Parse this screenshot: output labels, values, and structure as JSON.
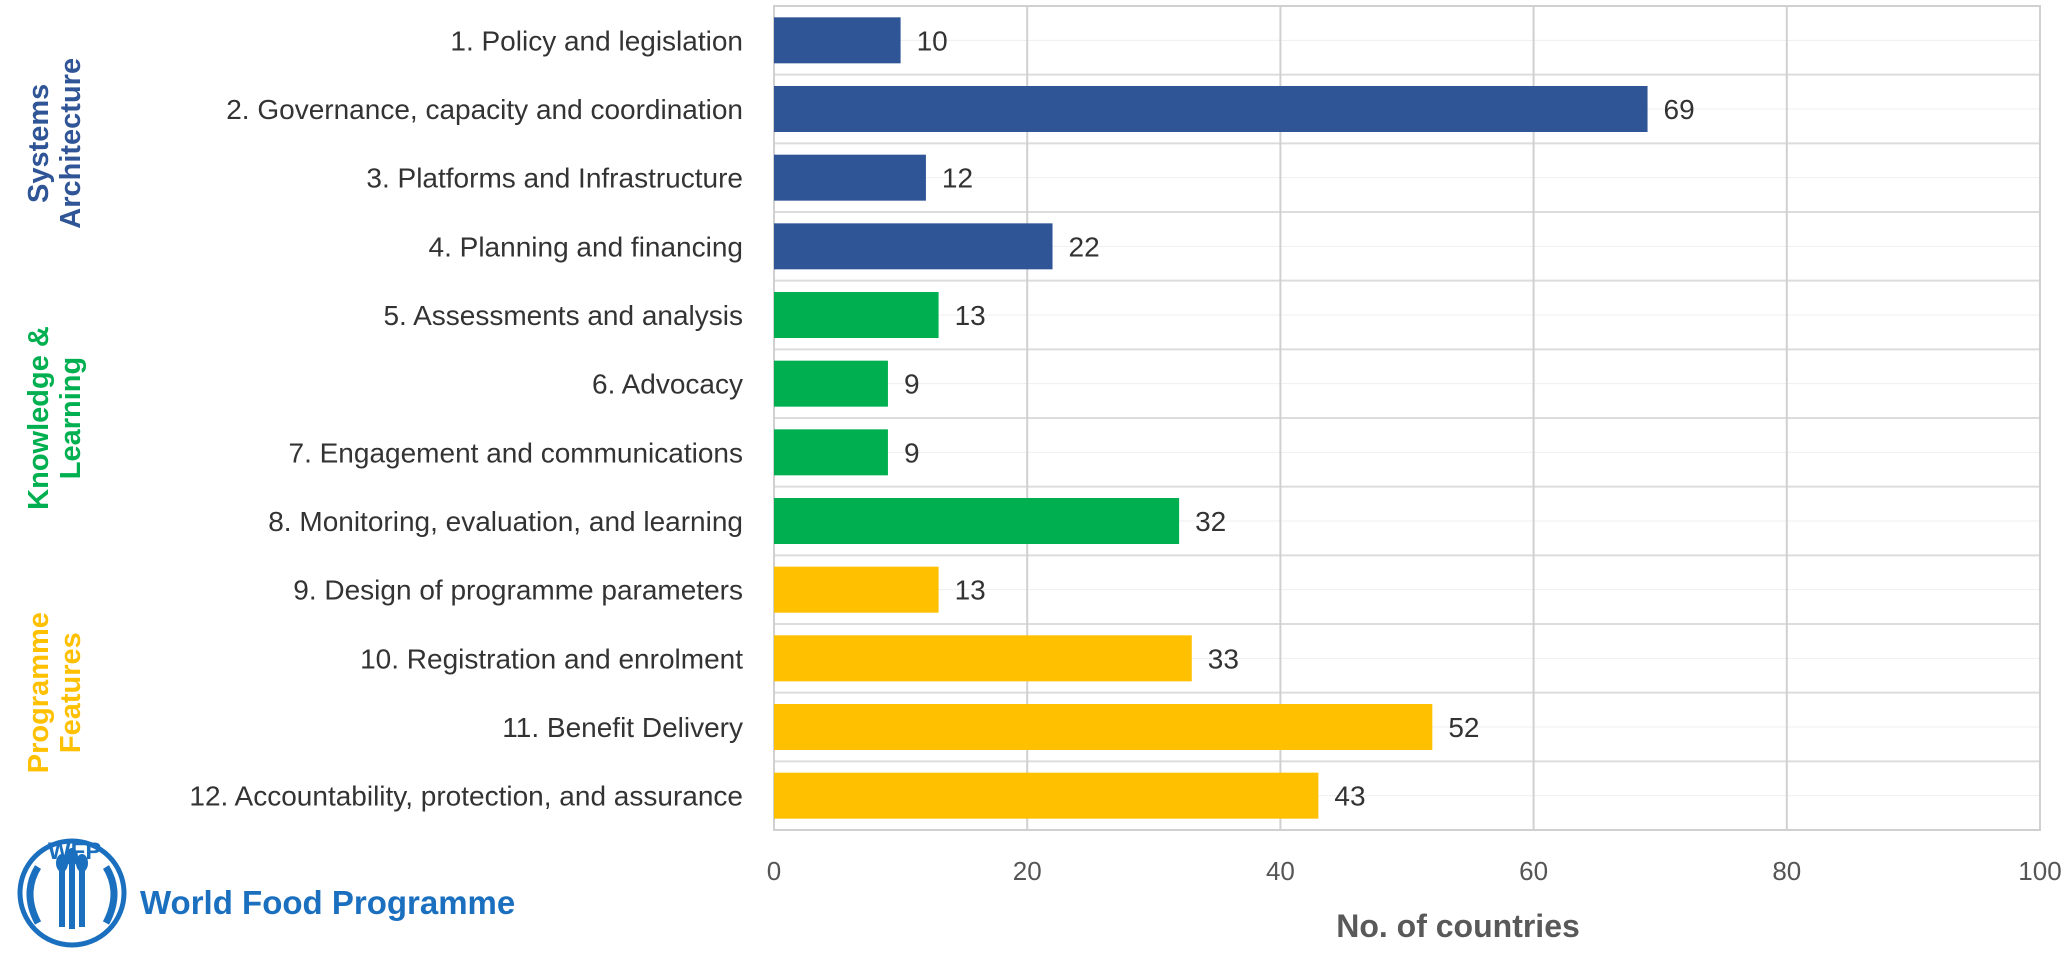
{
  "chart_data": {
    "type": "bar",
    "orientation": "horizontal",
    "categories": [
      "1. Policy and legislation",
      "2. Governance, capacity and coordination",
      "3. Platforms and Infrastructure",
      "4. Planning and financing",
      "5. Assessments and analysis",
      "6. Advocacy",
      "7. Engagement and communications",
      "8. Monitoring, evaluation, and learning",
      "9. Design of programme parameters",
      "10. Registration and enrolment",
      "11. Benefit Delivery",
      "12. Accountability, protection, and assurance"
    ],
    "values": [
      10,
      69,
      12,
      22,
      13,
      9,
      9,
      32,
      13,
      33,
      52,
      43
    ],
    "groups": [
      {
        "name": "Systems Architecture",
        "lines": [
          "Systems",
          "Architecture"
        ],
        "categories": [
          0,
          1,
          2,
          3
        ],
        "color": "#2f5597"
      },
      {
        "name": "Knowledge & Learning",
        "lines": [
          "Knowledge &",
          "Learning"
        ],
        "categories": [
          4,
          5,
          6,
          7
        ],
        "color": "#00b050"
      },
      {
        "name": "Programme Features",
        "lines": [
          "Programme",
          "Features"
        ],
        "categories": [
          8,
          9,
          10,
          11
        ],
        "color": "#ffc000"
      }
    ],
    "xlabel": "No. of countries",
    "xlim": [
      0,
      100
    ],
    "xticks": [
      0,
      20,
      40,
      60,
      80,
      100
    ],
    "grid": true,
    "data_labels": true
  },
  "logo": {
    "acronym": "WFP",
    "name": "World Food Programme",
    "color": "#1a6fbf"
  }
}
